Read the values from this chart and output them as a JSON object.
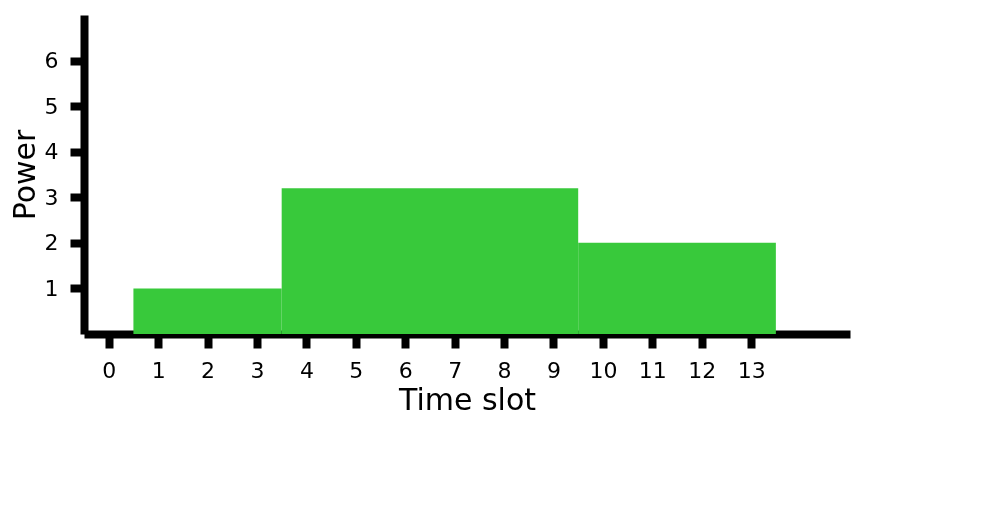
{
  "chart_data": {
    "type": "histogram",
    "xlabel": "Time slot",
    "ylabel": "Power",
    "bins": [
      0.5,
      3.5,
      9.5,
      13.5
    ],
    "values": [
      1,
      3.2,
      2
    ],
    "color": "#38c93b",
    "xlim": [
      -0.5,
      15
    ],
    "xticks": [
      0,
      1,
      2,
      3,
      4,
      5,
      6,
      7,
      8,
      9,
      10,
      11,
      12,
      13
    ],
    "ylim": [
      0,
      7
    ],
    "yticks": [
      1,
      2,
      3,
      4,
      5,
      6
    ],
    "grid": false
  }
}
